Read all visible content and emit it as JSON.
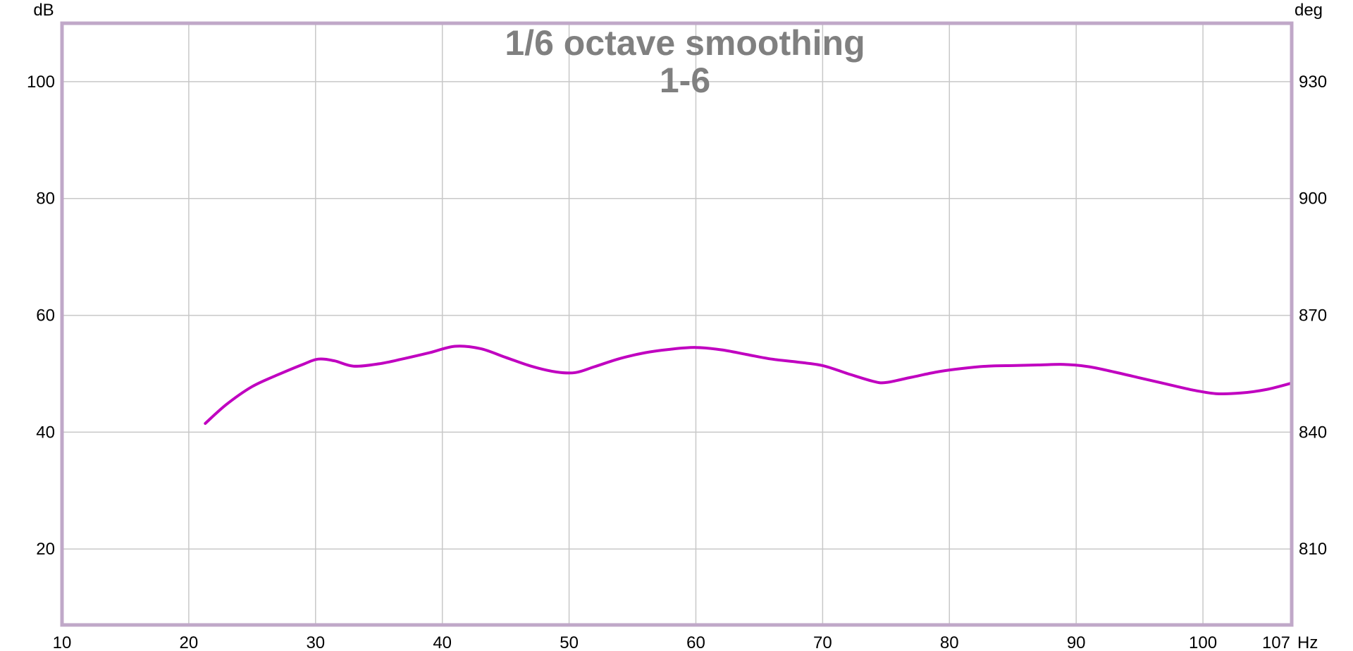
{
  "chart_data": {
    "type": "line",
    "title": "1/6 octave smoothing",
    "subtitle": "1-6",
    "x_unit": "Hz",
    "y_left_unit": "dB",
    "y_right_unit": "deg",
    "xlim": [
      10,
      107
    ],
    "ylim": [
      7,
      110
    ],
    "y_right_lim": [
      790.5,
      945
    ],
    "x_ticks": [
      "10",
      "20",
      "30",
      "40",
      "50",
      "60",
      "70",
      "80",
      "90",
      "100",
      "107"
    ],
    "y_ticks": [
      "20",
      "40",
      "60",
      "80",
      "100"
    ],
    "y_right_ticks": [
      "810",
      "840",
      "870",
      "900",
      "930"
    ],
    "grid": true,
    "colors": {
      "series": "#c000c0",
      "grid": "#c8c8c8",
      "frame": "#c0a8c8",
      "title": "#808080"
    },
    "series": [
      {
        "x": [
          21.3,
          23,
          25,
          27,
          29,
          30.2,
          31.5,
          33,
          35,
          37,
          39,
          41,
          43,
          45,
          47,
          49,
          50.5,
          52,
          54,
          56,
          58,
          60,
          62,
          64,
          66,
          68,
          70,
          72,
          74,
          75,
          77,
          79,
          81,
          83,
          85,
          87,
          89,
          91,
          93,
          95,
          97,
          99,
          101,
          103,
          105,
          107
        ],
        "y": [
          41.5,
          44.8,
          47.8,
          49.8,
          51.6,
          52.5,
          52.2,
          51.3,
          51.7,
          52.6,
          53.6,
          54.7,
          54.3,
          52.8,
          51.3,
          50.3,
          50.2,
          51.2,
          52.6,
          53.6,
          54.2,
          54.5,
          54.1,
          53.3,
          52.5,
          52.0,
          51.4,
          50.0,
          48.7,
          48.5,
          49.4,
          50.3,
          50.9,
          51.3,
          51.4,
          51.5,
          51.6,
          51.2,
          50.3,
          49.3,
          48.3,
          47.3,
          46.6,
          46.7,
          47.3,
          48.4
        ]
      }
    ]
  }
}
